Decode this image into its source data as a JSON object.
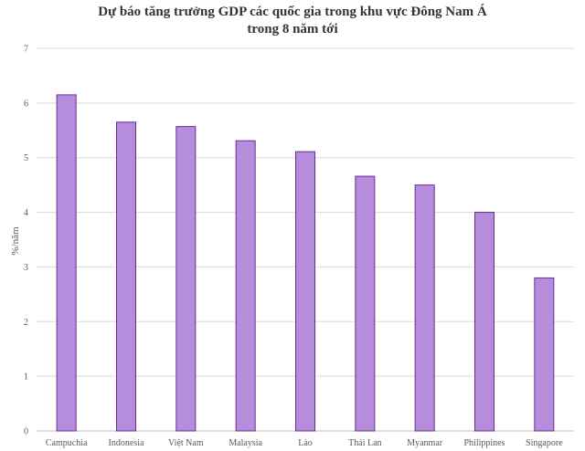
{
  "chart_data": {
    "type": "bar",
    "title_lines": [
      "Dự báo tăng trưởng GDP các quốc gia trong khu vực Đông Nam Á",
      "trong 8 năm tới"
    ],
    "xlabel": "",
    "ylabel": "%/năm",
    "categories": [
      "Campuchia",
      "Indonesia",
      "Việt Nam",
      "Malaysia",
      "Lào",
      "Thái Lan",
      "Myanmar",
      "Philippines",
      "Singapore"
    ],
    "values": [
      6.15,
      5.65,
      5.57,
      5.31,
      5.11,
      4.66,
      4.5,
      4.0,
      2.8
    ],
    "ylim": [
      0,
      7
    ],
    "yticks": [
      0,
      1,
      2,
      3,
      4,
      5,
      6,
      7
    ],
    "grid": true,
    "legend": "none",
    "colors": {
      "bar_fill": "#b58ddc",
      "bar_stroke": "#6a2c91",
      "grid": "#d9d9d9",
      "axis": "#bfbfbf"
    }
  }
}
